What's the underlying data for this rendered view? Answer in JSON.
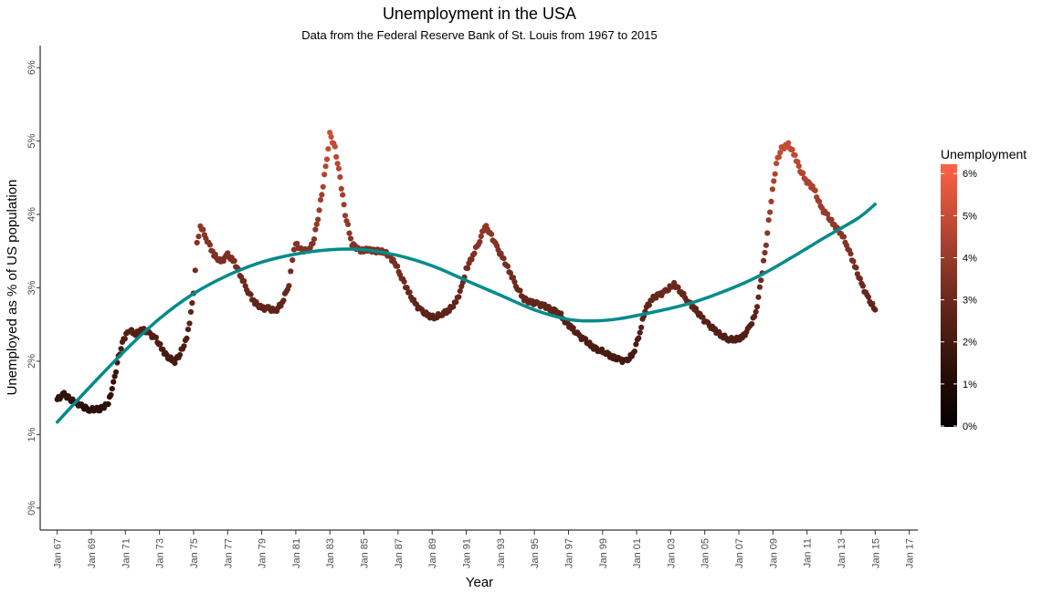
{
  "chart_data": {
    "type": "scatter",
    "title": "Unemployment in the USA",
    "subtitle": "Data from the Federal Reserve Bank of St. Louis from 1967 to 2015",
    "xlabel": "Year",
    "ylabel": "Unemployed as % of US population",
    "x_ticks": [
      "Jan 67",
      "Jan 69",
      "Jan 71",
      "Jan 73",
      "Jan 75",
      "Jan 77",
      "Jan 79",
      "Jan 81",
      "Jan 83",
      "Jan 85",
      "Jan 87",
      "Jan 89",
      "Jan 91",
      "Jan 93",
      "Jan 95",
      "Jan 97",
      "Jan 99",
      "Jan 01",
      "Jan 03",
      "Jan 05",
      "Jan 07",
      "Jan 09",
      "Jan 11",
      "Jan 13",
      "Jan 15",
      "Jan 17"
    ],
    "y_ticks": [
      "0%",
      "1%",
      "2%",
      "3%",
      "4%",
      "5%",
      "6%"
    ],
    "xlim": [
      1966.0,
      2017.5
    ],
    "ylim": [
      -0.3,
      6.3
    ],
    "grid": false,
    "legend": {
      "title": "Unemployment",
      "position": "right",
      "labels": [
        "6%",
        "5%",
        "4%",
        "3%",
        "2%",
        "1%",
        "0%"
      ],
      "range": [
        0,
        6.2
      ],
      "color_low": "#000000",
      "color_high": "#ff6347"
    },
    "series": [
      {
        "kind": "points",
        "x_unit": "year",
        "key_points": [
          [
            1967.0,
            1.48
          ],
          [
            1967.4,
            1.55
          ],
          [
            1967.9,
            1.46
          ],
          [
            1968.5,
            1.38
          ],
          [
            1968.9,
            1.34
          ],
          [
            1969.5,
            1.35
          ],
          [
            1970.0,
            1.42
          ],
          [
            1970.3,
            1.7
          ],
          [
            1970.6,
            2.05
          ],
          [
            1970.9,
            2.3
          ],
          [
            1971.2,
            2.42
          ],
          [
            1971.6,
            2.38
          ],
          [
            1972.0,
            2.43
          ],
          [
            1972.4,
            2.38
          ],
          [
            1972.8,
            2.3
          ],
          [
            1973.2,
            2.15
          ],
          [
            1973.5,
            2.05
          ],
          [
            1973.9,
            2.0
          ],
          [
            1974.2,
            2.1
          ],
          [
            1974.6,
            2.3
          ],
          [
            1975.0,
            2.9
          ],
          [
            1975.2,
            3.6
          ],
          [
            1975.4,
            3.85
          ],
          [
            1975.8,
            3.65
          ],
          [
            1976.2,
            3.45
          ],
          [
            1976.6,
            3.35
          ],
          [
            1977.0,
            3.45
          ],
          [
            1977.4,
            3.35
          ],
          [
            1977.8,
            3.15
          ],
          [
            1978.2,
            2.95
          ],
          [
            1978.6,
            2.8
          ],
          [
            1979.0,
            2.72
          ],
          [
            1979.4,
            2.72
          ],
          [
            1979.8,
            2.68
          ],
          [
            1980.2,
            2.8
          ],
          [
            1980.6,
            3.05
          ],
          [
            1980.8,
            3.4
          ],
          [
            1981.0,
            3.6
          ],
          [
            1981.3,
            3.52
          ],
          [
            1981.7,
            3.5
          ],
          [
            1982.0,
            3.6
          ],
          [
            1982.3,
            3.95
          ],
          [
            1982.6,
            4.4
          ],
          [
            1982.9,
            4.9
          ],
          [
            1983.0,
            5.1
          ],
          [
            1983.3,
            4.9
          ],
          [
            1983.6,
            4.5
          ],
          [
            1983.9,
            4.0
          ],
          [
            1984.3,
            3.6
          ],
          [
            1984.8,
            3.5
          ],
          [
            1985.3,
            3.52
          ],
          [
            1985.8,
            3.5
          ],
          [
            1986.3,
            3.48
          ],
          [
            1986.8,
            3.35
          ],
          [
            1987.2,
            3.15
          ],
          [
            1987.6,
            2.95
          ],
          [
            1988.0,
            2.78
          ],
          [
            1988.4,
            2.68
          ],
          [
            1988.8,
            2.62
          ],
          [
            1989.2,
            2.6
          ],
          [
            1989.6,
            2.65
          ],
          [
            1990.0,
            2.7
          ],
          [
            1990.4,
            2.8
          ],
          [
            1990.8,
            3.05
          ],
          [
            1991.0,
            3.25
          ],
          [
            1991.4,
            3.45
          ],
          [
            1991.8,
            3.65
          ],
          [
            1992.1,
            3.85
          ],
          [
            1992.4,
            3.75
          ],
          [
            1992.8,
            3.55
          ],
          [
            1993.2,
            3.38
          ],
          [
            1993.6,
            3.2
          ],
          [
            1994.0,
            3.0
          ],
          [
            1994.4,
            2.85
          ],
          [
            1994.8,
            2.8
          ],
          [
            1995.2,
            2.78
          ],
          [
            1995.6,
            2.75
          ],
          [
            1996.0,
            2.7
          ],
          [
            1996.4,
            2.68
          ],
          [
            1996.8,
            2.55
          ],
          [
            1997.2,
            2.45
          ],
          [
            1997.6,
            2.35
          ],
          [
            1998.0,
            2.28
          ],
          [
            1998.4,
            2.2
          ],
          [
            1998.8,
            2.15
          ],
          [
            1999.2,
            2.12
          ],
          [
            1999.6,
            2.05
          ],
          [
            2000.0,
            2.02
          ],
          [
            2000.4,
            2.0
          ],
          [
            2000.8,
            2.1
          ],
          [
            2001.2,
            2.4
          ],
          [
            2001.5,
            2.7
          ],
          [
            2001.9,
            2.85
          ],
          [
            2002.3,
            2.9
          ],
          [
            2002.7,
            2.95
          ],
          [
            2003.2,
            3.05
          ],
          [
            2003.6,
            2.95
          ],
          [
            2004.0,
            2.82
          ],
          [
            2004.4,
            2.72
          ],
          [
            2004.8,
            2.6
          ],
          [
            2005.2,
            2.5
          ],
          [
            2005.6,
            2.42
          ],
          [
            2006.0,
            2.35
          ],
          [
            2006.4,
            2.3
          ],
          [
            2006.8,
            2.3
          ],
          [
            2007.2,
            2.32
          ],
          [
            2007.6,
            2.45
          ],
          [
            2008.0,
            2.65
          ],
          [
            2008.3,
            3.1
          ],
          [
            2008.6,
            3.6
          ],
          [
            2008.9,
            4.2
          ],
          [
            2009.2,
            4.7
          ],
          [
            2009.5,
            4.9
          ],
          [
            2009.9,
            4.95
          ],
          [
            2010.3,
            4.8
          ],
          [
            2010.6,
            4.6
          ],
          [
            2011.0,
            4.45
          ],
          [
            2011.4,
            4.35
          ],
          [
            2011.8,
            4.1
          ],
          [
            2012.2,
            3.98
          ],
          [
            2012.6,
            3.85
          ],
          [
            2013.0,
            3.75
          ],
          [
            2013.4,
            3.55
          ],
          [
            2013.8,
            3.3
          ],
          [
            2014.2,
            3.05
          ],
          [
            2014.6,
            2.85
          ],
          [
            2015.0,
            2.7
          ]
        ]
      },
      {
        "kind": "smooth-line",
        "color": "#008b8b",
        "key_points": [
          [
            1967.0,
            1.17
          ],
          [
            1969.0,
            1.67
          ],
          [
            1971.0,
            2.15
          ],
          [
            1973.0,
            2.58
          ],
          [
            1975.0,
            2.92
          ],
          [
            1977.0,
            3.17
          ],
          [
            1979.0,
            3.35
          ],
          [
            1981.0,
            3.46
          ],
          [
            1983.0,
            3.52
          ],
          [
            1985.0,
            3.52
          ],
          [
            1987.0,
            3.44
          ],
          [
            1989.0,
            3.3
          ],
          [
            1991.0,
            3.1
          ],
          [
            1993.0,
            2.9
          ],
          [
            1995.0,
            2.7
          ],
          [
            1997.0,
            2.57
          ],
          [
            1998.5,
            2.55
          ],
          [
            2000.0,
            2.58
          ],
          [
            2002.0,
            2.67
          ],
          [
            2004.0,
            2.78
          ],
          [
            2006.0,
            2.94
          ],
          [
            2008.0,
            3.14
          ],
          [
            2010.0,
            3.4
          ],
          [
            2012.0,
            3.68
          ],
          [
            2014.0,
            3.95
          ],
          [
            2015.0,
            4.14
          ]
        ]
      }
    ]
  }
}
